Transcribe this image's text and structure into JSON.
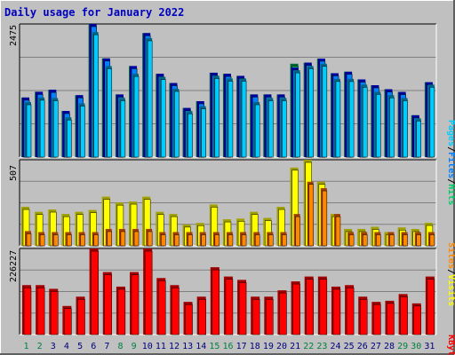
{
  "title": "Daily usage for January 2022",
  "colors": {
    "background": "#c0c0c0",
    "title": "#0000c0",
    "hits_front": "#00cc66",
    "hits_back": "#006633",
    "files_front": "#0080ff",
    "files_back": "#0000a0",
    "pages_front": "#00ccff",
    "pages_back": "#006688",
    "visits_front": "#ffff00",
    "visits_back": "#a0a000",
    "sites_front": "#ff8800",
    "sites_back": "#a04000",
    "kbytes_front": "#ff0000",
    "kbytes_back": "#a00000",
    "weekend_label": "#008040",
    "weekday_label": "#000080"
  },
  "chart_data": [
    {
      "type": "bar",
      "panel": "hits-files-pages",
      "ymax_label": "2475",
      "ylim": [
        0,
        2475
      ],
      "axis_title_parts": [
        "Pages",
        "/",
        "Files",
        "/",
        "Hits"
      ],
      "categories": [
        "1",
        "2",
        "3",
        "4",
        "5",
        "6",
        "7",
        "8",
        "9",
        "10",
        "11",
        "12",
        "13",
        "14",
        "15",
        "16",
        "17",
        "18",
        "19",
        "20",
        "21",
        "22",
        "23",
        "24",
        "25",
        "26",
        "27",
        "28",
        "29",
        "30",
        "31"
      ],
      "series": [
        {
          "name": "Hits",
          "values": [
            1089,
            1197,
            1235,
            836,
            1133,
            2475,
            1826,
            1147,
            1682,
            2303,
            1536,
            1362,
            892,
            1020,
            1556,
            1536,
            1497,
            1147,
            1147,
            1147,
            1726,
            1746,
            1823,
            1547,
            1575,
            1430,
            1321,
            1245,
            1194,
            755,
            1377
          ]
        },
        {
          "name": "Files",
          "values": [
            1089,
            1197,
            1235,
            836,
            1133,
            2475,
            1826,
            1147,
            1682,
            2303,
            1536,
            1362,
            892,
            1020,
            1556,
            1536,
            1497,
            1147,
            1147,
            1147,
            1655,
            1746,
            1823,
            1547,
            1575,
            1430,
            1321,
            1245,
            1194,
            755,
            1377
          ]
        },
        {
          "name": "Pages",
          "values": [
            1003,
            1089,
            1079,
            716,
            978,
            2323,
            1682,
            1079,
            1536,
            2208,
            1477,
            1254,
            833,
            926,
            1497,
            1447,
            1447,
            1003,
            1079,
            1079,
            1604,
            1682,
            1726,
            1440,
            1440,
            1332,
            1197,
            1133,
            1079,
            696,
            1332
          ]
        }
      ]
    },
    {
      "type": "bar",
      "panel": "visits-sites",
      "ymax_label": "507",
      "ylim": [
        0,
        507
      ],
      "axis_title_parts": [
        "Sites",
        "/",
        "Visits"
      ],
      "categories": [
        "1",
        "2",
        "3",
        "4",
        "5",
        "6",
        "7",
        "8",
        "9",
        "10",
        "11",
        "12",
        "13",
        "14",
        "15",
        "16",
        "17",
        "18",
        "19",
        "20",
        "21",
        "22",
        "23",
        "24",
        "25",
        "26",
        "27",
        "28",
        "29",
        "30",
        "31"
      ],
      "series": [
        {
          "name": "Visits",
          "values": [
            224,
            194,
            208,
            181,
            194,
            205,
            285,
            250,
            256,
            285,
            194,
            181,
            118,
            127,
            238,
            149,
            153,
            194,
            157,
            224,
            460,
            507,
            375,
            181,
            91,
            91,
            104,
            72,
            100,
            91,
            128
          ]
        },
        {
          "name": "Sites",
          "values": [
            78,
            72,
            72,
            72,
            72,
            72,
            91,
            91,
            91,
            91,
            72,
            72,
            72,
            72,
            72,
            72,
            72,
            72,
            72,
            72,
            181,
            375,
            336,
            181,
            72,
            72,
            72,
            72,
            72,
            72,
            72
          ]
        }
      ]
    },
    {
      "type": "bar",
      "panel": "kbytes",
      "ymax_label": "226227",
      "ylim": [
        0,
        226227
      ],
      "axis_title_parts": [
        "KBytes"
      ],
      "categories": [
        "1",
        "2",
        "3",
        "4",
        "5",
        "6",
        "7",
        "8",
        "9",
        "10",
        "11",
        "12",
        "13",
        "14",
        "15",
        "16",
        "17",
        "18",
        "19",
        "20",
        "21",
        "22",
        "23",
        "24",
        "25",
        "26",
        "27",
        "28",
        "29",
        "30",
        "31"
      ],
      "series": [
        {
          "name": "KBytes",
          "values": [
            128000,
            128000,
            118000,
            72000,
            97000,
            226227,
            163000,
            124000,
            163000,
            226227,
            147000,
            128000,
            83000,
            97000,
            176000,
            151000,
            142000,
            97000,
            97000,
            114000,
            138000,
            151000,
            151000,
            124000,
            128000,
            97000,
            83000,
            86000,
            104000,
            79000,
            151000
          ]
        }
      ]
    }
  ],
  "x_labels": [
    "1",
    "2",
    "3",
    "4",
    "5",
    "6",
    "7",
    "8",
    "9",
    "10",
    "11",
    "12",
    "13",
    "14",
    "15",
    "16",
    "17",
    "18",
    "19",
    "20",
    "21",
    "22",
    "23",
    "24",
    "25",
    "26",
    "27",
    "28",
    "29",
    "30",
    "31"
  ],
  "weekend_days": [
    "1",
    "2",
    "8",
    "9",
    "15",
    "16",
    "22",
    "23",
    "29",
    "30"
  ]
}
